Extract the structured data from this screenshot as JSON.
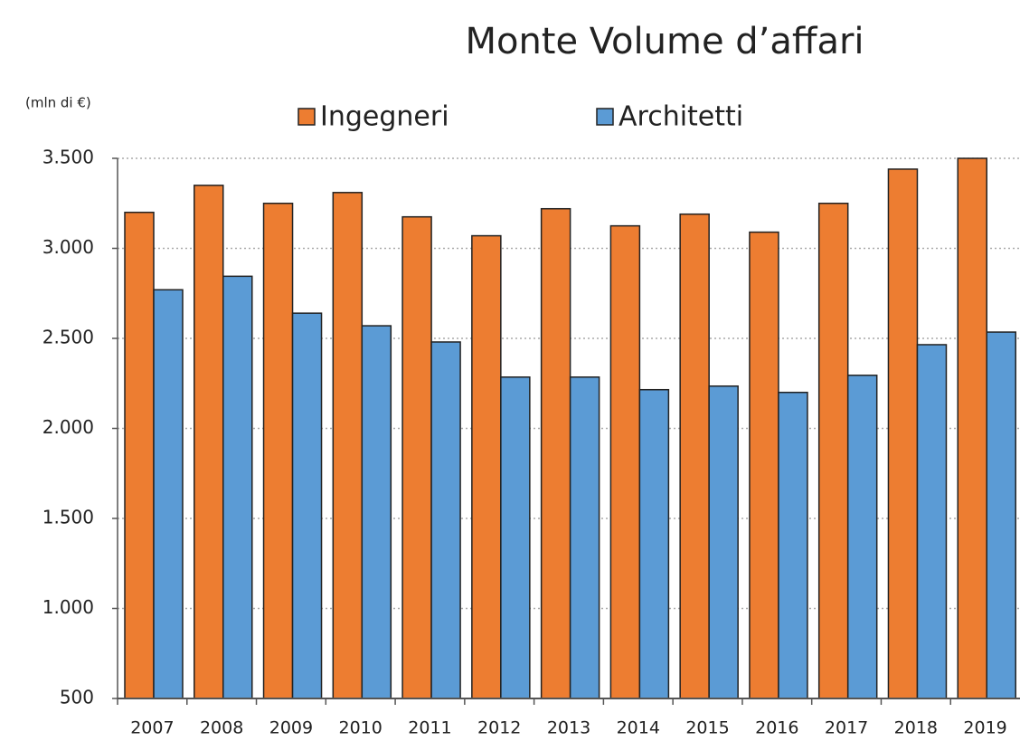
{
  "chart_data": {
    "type": "bar",
    "title": "Monte Volume d’affari",
    "y_unit_label": "(mln di €)",
    "categories": [
      "2007",
      "2008",
      "2009",
      "2010",
      "2011",
      "2012",
      "2013",
      "2014",
      "2015",
      "2016",
      "2017",
      "2018",
      "2019"
    ],
    "series": [
      {
        "name": "Ingegneri",
        "color": "#ed7d31",
        "values": [
          3200,
          3350,
          3250,
          3310,
          3175,
          3070,
          3220,
          3125,
          3190,
          3090,
          3250,
          3440,
          3500
        ]
      },
      {
        "name": "Architetti",
        "color": "#5b9bd5",
        "values": [
          2770,
          2845,
          2640,
          2570,
          2480,
          2285,
          2285,
          2215,
          2235,
          2200,
          2295,
          2465,
          2535
        ]
      }
    ],
    "ylim": [
      500,
      3500
    ],
    "yticks": [
      500,
      {
        "value": 1000,
        "label": "1.000"
      },
      {
        "value": 1500,
        "label": "1.500"
      },
      {
        "value": 2000,
        "label": "2.000"
      },
      {
        "value": 2500,
        "label": "2.500"
      },
      {
        "value": 3000,
        "label": "3.000"
      },
      {
        "value": 3500,
        "label": "3.500"
      }
    ],
    "grid": true,
    "legend": "top"
  }
}
